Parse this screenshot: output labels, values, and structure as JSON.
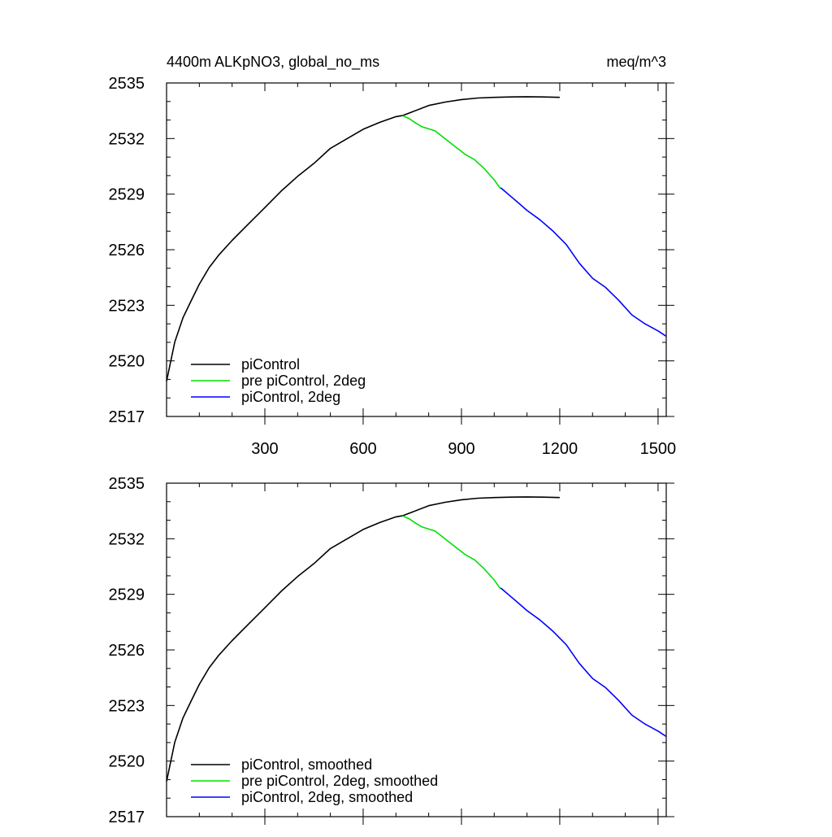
{
  "chart_data": [
    {
      "type": "line",
      "title_left": "4400m ALKpNO3, global_no_ms",
      "title_right": "meq/m^3",
      "xlim": [
        0,
        1525
      ],
      "ylim": [
        2517,
        2535
      ],
      "x_ticks": [
        300,
        600,
        900,
        1200,
        1500
      ],
      "x_tick_labels": [
        "300",
        "600",
        "900",
        "1200",
        "1500"
      ],
      "y_ticks": [
        2517,
        2520,
        2523,
        2526,
        2529,
        2532,
        2535
      ],
      "y_tick_labels": [
        "2517",
        "2520",
        "2523",
        "2526",
        "2529",
        "2532",
        "2535"
      ],
      "grid": false,
      "legend_position": "bottom-left",
      "series": [
        {
          "name": "piControl",
          "color": "#000000",
          "x": [
            0,
            25,
            50,
            75,
            100,
            130,
            160,
            200,
            250,
            300,
            350,
            400,
            450,
            500,
            550,
            600,
            650,
            700,
            720,
            750,
            800,
            850,
            900,
            950,
            1000,
            1050,
            1100,
            1150,
            1200
          ],
          "y": [
            2518.9,
            2521.0,
            2522.3,
            2523.2,
            2524.1,
            2525.0,
            2525.7,
            2526.5,
            2527.4,
            2528.3,
            2529.2,
            2530.0,
            2530.7,
            2531.5,
            2532.0,
            2532.5,
            2532.85,
            2533.15,
            2533.2,
            2533.4,
            2533.75,
            2533.95,
            2534.1,
            2534.2,
            2534.25,
            2534.28,
            2534.3,
            2534.28,
            2534.25
          ]
        },
        {
          "name": "pre piControl, 2deg",
          "color": "#00e000",
          "x": [
            720,
            740,
            760,
            780,
            800,
            820,
            850,
            880,
            910,
            940,
            970,
            1000,
            1020
          ],
          "y": [
            2533.2,
            2533.05,
            2532.8,
            2532.6,
            2532.5,
            2532.4,
            2532.0,
            2531.6,
            2531.2,
            2530.9,
            2530.4,
            2529.8,
            2529.3
          ]
        },
        {
          "name": "piControl, 2deg",
          "color": "#0000ff",
          "x": [
            1020,
            1060,
            1100,
            1140,
            1180,
            1220,
            1260,
            1300,
            1340,
            1380,
            1420,
            1460,
            1500,
            1525
          ],
          "y": [
            2529.3,
            2528.7,
            2528.1,
            2527.6,
            2527.0,
            2526.3,
            2525.3,
            2524.5,
            2524.0,
            2523.3,
            2522.5,
            2522.0,
            2521.6,
            2521.3
          ]
        }
      ]
    },
    {
      "type": "line",
      "xlim": [
        0,
        1525
      ],
      "ylim": [
        2517,
        2535
      ],
      "x_ticks": [
        300,
        600,
        900,
        1200,
        1500
      ],
      "y_ticks": [
        2517,
        2520,
        2523,
        2526,
        2529,
        2532,
        2535
      ],
      "y_tick_labels": [
        "2517",
        "2520",
        "2523",
        "2526",
        "2529",
        "2532",
        "2535"
      ],
      "grid": false,
      "legend_position": "bottom-left",
      "series": [
        {
          "name": "piControl, smoothed",
          "color": "#000000",
          "x": [
            0,
            25,
            50,
            75,
            100,
            130,
            160,
            200,
            250,
            300,
            350,
            400,
            450,
            500,
            550,
            600,
            650,
            700,
            720,
            750,
            800,
            850,
            900,
            950,
            1000,
            1050,
            1100,
            1150,
            1200
          ],
          "y": [
            2518.9,
            2521.0,
            2522.3,
            2523.2,
            2524.1,
            2525.0,
            2525.7,
            2526.5,
            2527.4,
            2528.3,
            2529.2,
            2530.0,
            2530.7,
            2531.5,
            2532.0,
            2532.5,
            2532.85,
            2533.15,
            2533.2,
            2533.4,
            2533.75,
            2533.95,
            2534.1,
            2534.2,
            2534.25,
            2534.28,
            2534.3,
            2534.28,
            2534.25
          ]
        },
        {
          "name": "pre piControl, 2deg, smoothed",
          "color": "#00e000",
          "x": [
            720,
            740,
            760,
            780,
            800,
            820,
            850,
            880,
            910,
            940,
            970,
            1000,
            1020
          ],
          "y": [
            2533.2,
            2533.05,
            2532.8,
            2532.6,
            2532.5,
            2532.4,
            2532.0,
            2531.6,
            2531.2,
            2530.9,
            2530.4,
            2529.8,
            2529.3
          ]
        },
        {
          "name": "piControl, 2deg, smoothed",
          "color": "#0000ff",
          "x": [
            1020,
            1060,
            1100,
            1140,
            1180,
            1220,
            1260,
            1300,
            1340,
            1380,
            1420,
            1460,
            1500,
            1525
          ],
          "y": [
            2529.3,
            2528.7,
            2528.1,
            2527.6,
            2527.0,
            2526.3,
            2525.3,
            2524.5,
            2524.0,
            2523.3,
            2522.5,
            2522.0,
            2521.6,
            2521.3
          ]
        }
      ]
    }
  ]
}
